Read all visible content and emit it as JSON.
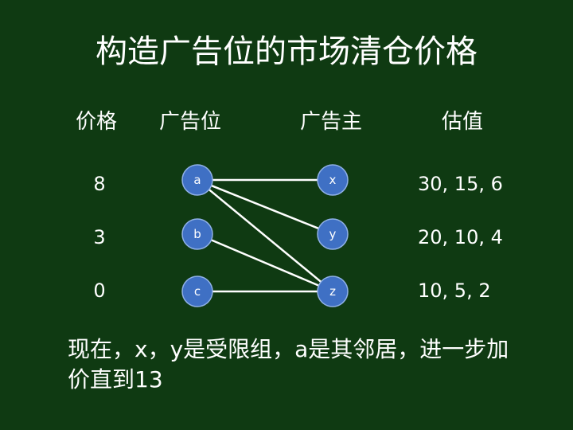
{
  "title": "构造广告位的市场清仓价格",
  "headers": {
    "price": "价格",
    "slots": "广告位",
    "advertisers": "广告主",
    "valuations": "估值"
  },
  "rows": [
    {
      "price": "8",
      "slot": "a",
      "advertiser": "x",
      "valuation": "30, 15, 6"
    },
    {
      "price": "3",
      "slot": "b",
      "advertiser": "y",
      "valuation": "20, 10, 4"
    },
    {
      "price": "0",
      "slot": "c",
      "advertiser": "z",
      "valuation": "10, 5, 2"
    }
  ],
  "edges": [
    {
      "from": "a",
      "to": "x"
    },
    {
      "from": "a",
      "to": "y"
    },
    {
      "from": "a",
      "to": "z"
    },
    {
      "from": "b",
      "to": "z"
    },
    {
      "from": "c",
      "to": "z"
    }
  ],
  "footer": "现在，x，y是受限组，a是其邻居，进一步加价直到13",
  "colors": {
    "background": "#0f3a12",
    "node_fill": "#3f70c4",
    "node_stroke": "#8fb0e6",
    "edge": "#ffffff",
    "text": "#ffffff"
  }
}
